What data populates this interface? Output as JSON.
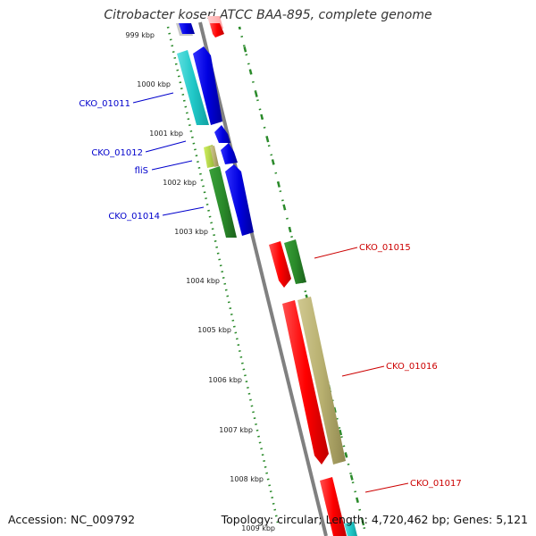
{
  "title": "Citrobacter koseri ATCC BAA-895, complete genome",
  "footer": {
    "accession": "Accession: NC_009792",
    "summary": "Topology: circular; Length: 4,720,462 bp; Genes: 5,121"
  },
  "ruler": [
    {
      "label": "999 kbp"
    },
    {
      "label": "1000 kbp"
    },
    {
      "label": "1001 kbp"
    },
    {
      "label": "1002 kbp"
    },
    {
      "label": "1003 kbp"
    },
    {
      "label": "1004 kbp"
    },
    {
      "label": "1005 kbp"
    },
    {
      "label": "1006 kbp"
    },
    {
      "label": "1007 kbp"
    },
    {
      "label": "1008 kbp"
    },
    {
      "label": "1009 kbp"
    }
  ],
  "gene_labels": {
    "left": [
      "CKO_01011",
      "CKO_01012",
      "fliS",
      "CKO_01014"
    ],
    "right": [
      "CKO_01015",
      "CKO_01016",
      "CKO_01017"
    ]
  },
  "colors": {
    "left_label": "#0000cc",
    "right_label": "#cc0000",
    "ruler_ticks": "#2a8a2a",
    "backbone": "#808080",
    "cds_blue": "#0000ee",
    "cds_red": "#ff0000",
    "cds_green": "#2a8a2a",
    "cds_cyan": "#20c8c8",
    "cds_olive": "#b8b070",
    "cds_yellowgreen": "#b0d040"
  }
}
